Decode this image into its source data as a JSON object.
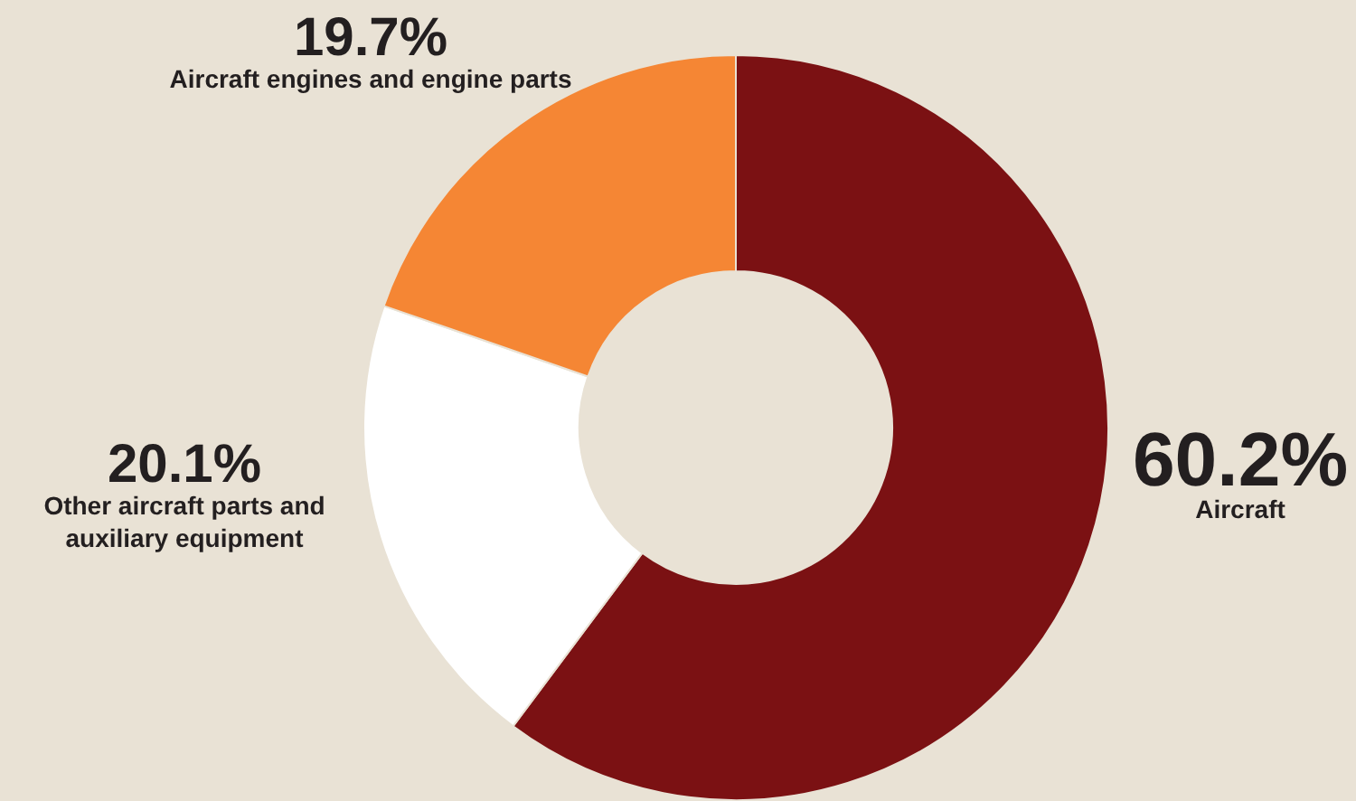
{
  "chart_data": {
    "type": "donut",
    "categories": [
      "Aircraft",
      "Other aircraft parts and auxiliary equipment",
      "Aircraft engines and engine parts"
    ],
    "values": [
      60.2,
      20.1,
      19.7
    ],
    "value_labels": [
      "60.2%",
      "20.1%",
      "19.7%"
    ],
    "colors": [
      "#7b1113",
      "#ffffff",
      "#f58634"
    ],
    "legend": false
  }
}
